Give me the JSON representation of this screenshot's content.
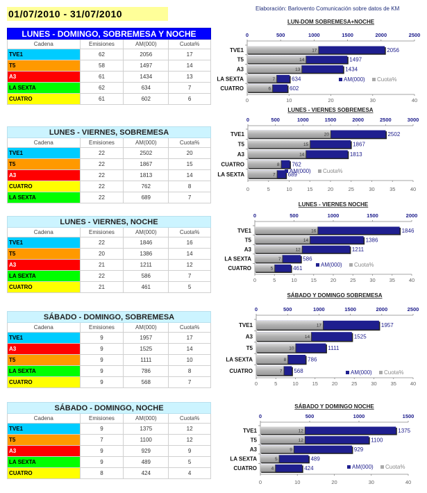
{
  "header": {
    "date_range": "01/07/2010 - 31/07/2010",
    "credit": "Elaboración: Barlovento Comunicación sobre datos de KM"
  },
  "colors": {
    "TVE1": "#00ccff",
    "T5": "#ff9900",
    "A3": "#ff0000",
    "LA SEXTA": "#00ff00",
    "CUATRO": "#ffff00",
    "am_bar": "#1f1f8f",
    "cuota_bar": "#b3b3b3"
  },
  "table_headers": [
    "Cadena",
    "Emisiones",
    "AM(000)",
    "Cuota%"
  ],
  "tables": [
    {
      "title": "LUNES - DOMINGO, SOBREMESA Y NOCHE",
      "rows": [
        {
          "cadena": "TVE1",
          "emisiones": "62",
          "am": "2056",
          "cuota": "17"
        },
        {
          "cadena": "T5",
          "emisiones": "58",
          "am": "1497",
          "cuota": "14"
        },
        {
          "cadena": "A3",
          "emisiones": "61",
          "am": "1434",
          "cuota": "13"
        },
        {
          "cadena": "LA SEXTA",
          "emisiones": "62",
          "am": "634",
          "cuota": "7"
        },
        {
          "cadena": "CUATRO",
          "emisiones": "61",
          "am": "602",
          "cuota": "6"
        }
      ]
    },
    {
      "title": "LUNES - VIERNES, SOBREMESA",
      "rows": [
        {
          "cadena": "TVE1",
          "emisiones": "22",
          "am": "2502",
          "cuota": "20"
        },
        {
          "cadena": "T5",
          "emisiones": "22",
          "am": "1867",
          "cuota": "15"
        },
        {
          "cadena": "A3",
          "emisiones": "22",
          "am": "1813",
          "cuota": "14"
        },
        {
          "cadena": "CUATRO",
          "emisiones": "22",
          "am": "762",
          "cuota": "8"
        },
        {
          "cadena": "LA SEXTA",
          "emisiones": "22",
          "am": "689",
          "cuota": "7"
        }
      ]
    },
    {
      "title": "LUNES - VIERNES, NOCHE",
      "rows": [
        {
          "cadena": "TVE1",
          "emisiones": "22",
          "am": "1846",
          "cuota": "16"
        },
        {
          "cadena": "T5",
          "emisiones": "20",
          "am": "1386",
          "cuota": "14"
        },
        {
          "cadena": "A3",
          "emisiones": "21",
          "am": "1211",
          "cuota": "12"
        },
        {
          "cadena": "LA SEXTA",
          "emisiones": "22",
          "am": "586",
          "cuota": "7"
        },
        {
          "cadena": "CUATRO",
          "emisiones": "21",
          "am": "461",
          "cuota": "5"
        }
      ]
    },
    {
      "title": "SÁBADO - DOMINGO, SOBREMESA",
      "rows": [
        {
          "cadena": "TVE1",
          "emisiones": "9",
          "am": "1957",
          "cuota": "17"
        },
        {
          "cadena": "A3",
          "emisiones": "9",
          "am": "1525",
          "cuota": "14"
        },
        {
          "cadena": "T5",
          "emisiones": "9",
          "am": "1111",
          "cuota": "10"
        },
        {
          "cadena": "LA SEXTA",
          "emisiones": "9",
          "am": "786",
          "cuota": "8"
        },
        {
          "cadena": "CUATRO",
          "emisiones": "9",
          "am": "568",
          "cuota": "7"
        }
      ]
    },
    {
      "title": "SÁBADO - DOMINGO, NOCHE",
      "rows": [
        {
          "cadena": "TVE1",
          "emisiones": "9",
          "am": "1375",
          "cuota": "12"
        },
        {
          "cadena": "T5",
          "emisiones": "7",
          "am": "1100",
          "cuota": "12"
        },
        {
          "cadena": "A3",
          "emisiones": "9",
          "am": "929",
          "cuota": "9"
        },
        {
          "cadena": "LA SEXTA",
          "emisiones": "9",
          "am": "489",
          "cuota": "5"
        },
        {
          "cadena": "CUATRO",
          "emisiones": "8",
          "am": "424",
          "cuota": "4"
        }
      ]
    }
  ],
  "chart_data": [
    {
      "type": "bar",
      "orientation": "horizontal",
      "title": "LUN-DOM SOBREMESA+NOCHE",
      "categories": [
        "TVE1",
        "T5",
        "A3",
        "LA SEXTA",
        "CUATRO"
      ],
      "series": [
        {
          "name": "AM(000)",
          "axis": "top",
          "values": [
            2056,
            1497,
            1434,
            634,
            602
          ]
        },
        {
          "name": "Cuota%",
          "axis": "bottom",
          "values": [
            17,
            14,
            13,
            7,
            6
          ]
        }
      ],
      "top_axis": {
        "range": [
          0,
          2500
        ],
        "ticks": [
          0,
          500,
          1000,
          1500,
          2000,
          2500
        ]
      },
      "bottom_axis": {
        "range": [
          0,
          40
        ],
        "ticks": [
          0,
          10,
          20,
          30,
          40
        ]
      },
      "legend": "bottom-right"
    },
    {
      "type": "bar",
      "orientation": "horizontal",
      "title": "LUNES - VIERNES SOBREMESA",
      "categories": [
        "TVE1",
        "T5",
        "A3",
        "CUATRO",
        "LA SEXTA"
      ],
      "series": [
        {
          "name": "AM(000)",
          "axis": "top",
          "values": [
            2502,
            1867,
            1813,
            762,
            689
          ]
        },
        {
          "name": "Cuota%",
          "axis": "bottom",
          "values": [
            20,
            15,
            14,
            8,
            7
          ]
        }
      ],
      "top_axis": {
        "range": [
          0,
          3000
        ],
        "ticks": [
          0,
          500,
          1000,
          1500,
          2000,
          2500,
          3000
        ]
      },
      "bottom_axis": {
        "range": [
          0,
          40
        ],
        "ticks": [
          0,
          5,
          10,
          15,
          20,
          25,
          30,
          35,
          40
        ]
      },
      "legend": "bottom-center"
    },
    {
      "type": "bar",
      "orientation": "horizontal",
      "title": "LUNES - VIERNES NOCHE",
      "categories": [
        "TVE1",
        "T5",
        "A3",
        "LA SEXTA",
        "CUATRO"
      ],
      "series": [
        {
          "name": "AM(000)",
          "axis": "top",
          "values": [
            1846,
            1386,
            1211,
            586,
            461
          ]
        },
        {
          "name": "Cuota%",
          "axis": "bottom",
          "values": [
            16,
            14,
            12,
            7,
            5
          ]
        }
      ],
      "top_axis": {
        "range": [
          0,
          2000
        ],
        "ticks": [
          0,
          500,
          1000,
          1500,
          2000
        ]
      },
      "bottom_axis": {
        "range": [
          0,
          40
        ],
        "ticks": [
          0,
          5,
          10,
          15,
          20,
          25,
          30,
          35,
          40
        ]
      },
      "legend": "bottom-center"
    },
    {
      "type": "bar",
      "orientation": "horizontal",
      "title": "SÁBADO Y DOMINGO SOBREMESA",
      "categories": [
        "TVE1",
        "A3",
        "T5",
        "LA SEXTA",
        "CUATRO"
      ],
      "series": [
        {
          "name": "AM(000)",
          "axis": "top",
          "values": [
            1957,
            1525,
            1111,
            786,
            568
          ]
        },
        {
          "name": "Cuota%",
          "axis": "bottom",
          "values": [
            17,
            14,
            10,
            8,
            7
          ]
        }
      ],
      "top_axis": {
        "range": [
          0,
          2500
        ],
        "ticks": [
          0,
          500,
          1000,
          1500,
          2000,
          2500
        ]
      },
      "bottom_axis": {
        "range": [
          0,
          40
        ],
        "ticks": [
          0,
          5,
          10,
          15,
          20,
          25,
          30,
          35,
          40
        ]
      },
      "legend": "bottom-right"
    },
    {
      "type": "bar",
      "orientation": "horizontal",
      "title": "SÁBADO Y DOMINGO  NOCHE",
      "categories": [
        "TVE1",
        "T5",
        "A3",
        "LA SEXTA",
        "CUATRO"
      ],
      "series": [
        {
          "name": "AM(000)",
          "axis": "top",
          "values": [
            1375,
            1100,
            929,
            489,
            424
          ]
        },
        {
          "name": "Cuota%",
          "axis": "bottom",
          "values": [
            12,
            12,
            9,
            5,
            4
          ]
        }
      ],
      "top_axis": {
        "range": [
          0,
          1500
        ],
        "ticks": [
          0,
          500,
          1000,
          1500
        ]
      },
      "bottom_axis": {
        "range": [
          0,
          40
        ],
        "ticks": [
          0,
          10,
          20,
          30,
          40
        ]
      },
      "legend": "bottom-right"
    }
  ]
}
